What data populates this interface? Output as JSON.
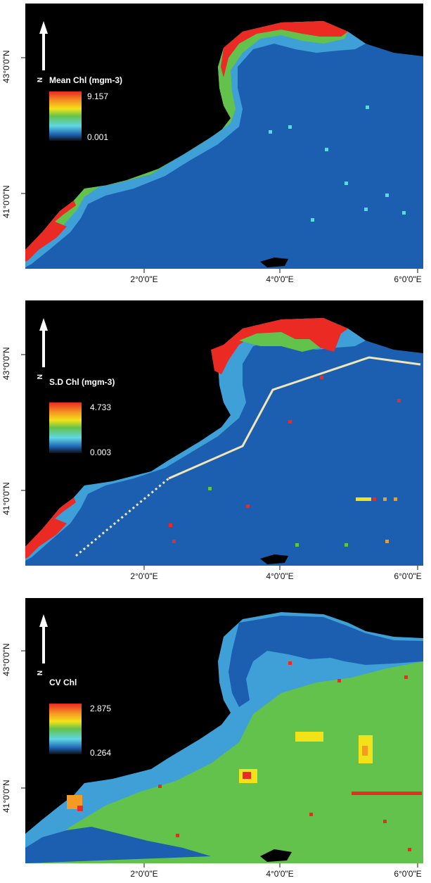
{
  "colors": {
    "background": "#000000",
    "sea_low": "#1c5fb0",
    "sea_mid": "#3fa0d8",
    "cyan": "#5fd6e6",
    "green": "#63c24c",
    "yellow": "#f4e219",
    "orange": "#f59a22",
    "red": "#ea2a23",
    "track_line": "#f1e6b8"
  },
  "axes": {
    "lat_labels": [
      "43°0'0\"N",
      "41°0'0\"N"
    ],
    "lon_labels": [
      "2°0'0\"E",
      "4°0'0\"E",
      "6°0'0\"E"
    ]
  },
  "north_arrow": {
    "letter": "N"
  },
  "panels": [
    {
      "id": "mean",
      "legend_title": "Mean Chl (mgm-3)",
      "legend_max": "9.157",
      "legend_min": "0.001"
    },
    {
      "id": "sd",
      "legend_title": "S.D Chl (mgm-3)",
      "legend_max": "4.733",
      "legend_min": "0.003"
    },
    {
      "id": "cv",
      "legend_title": "CV Chl",
      "legend_max": "2.875",
      "legend_min": "0.264"
    }
  ]
}
